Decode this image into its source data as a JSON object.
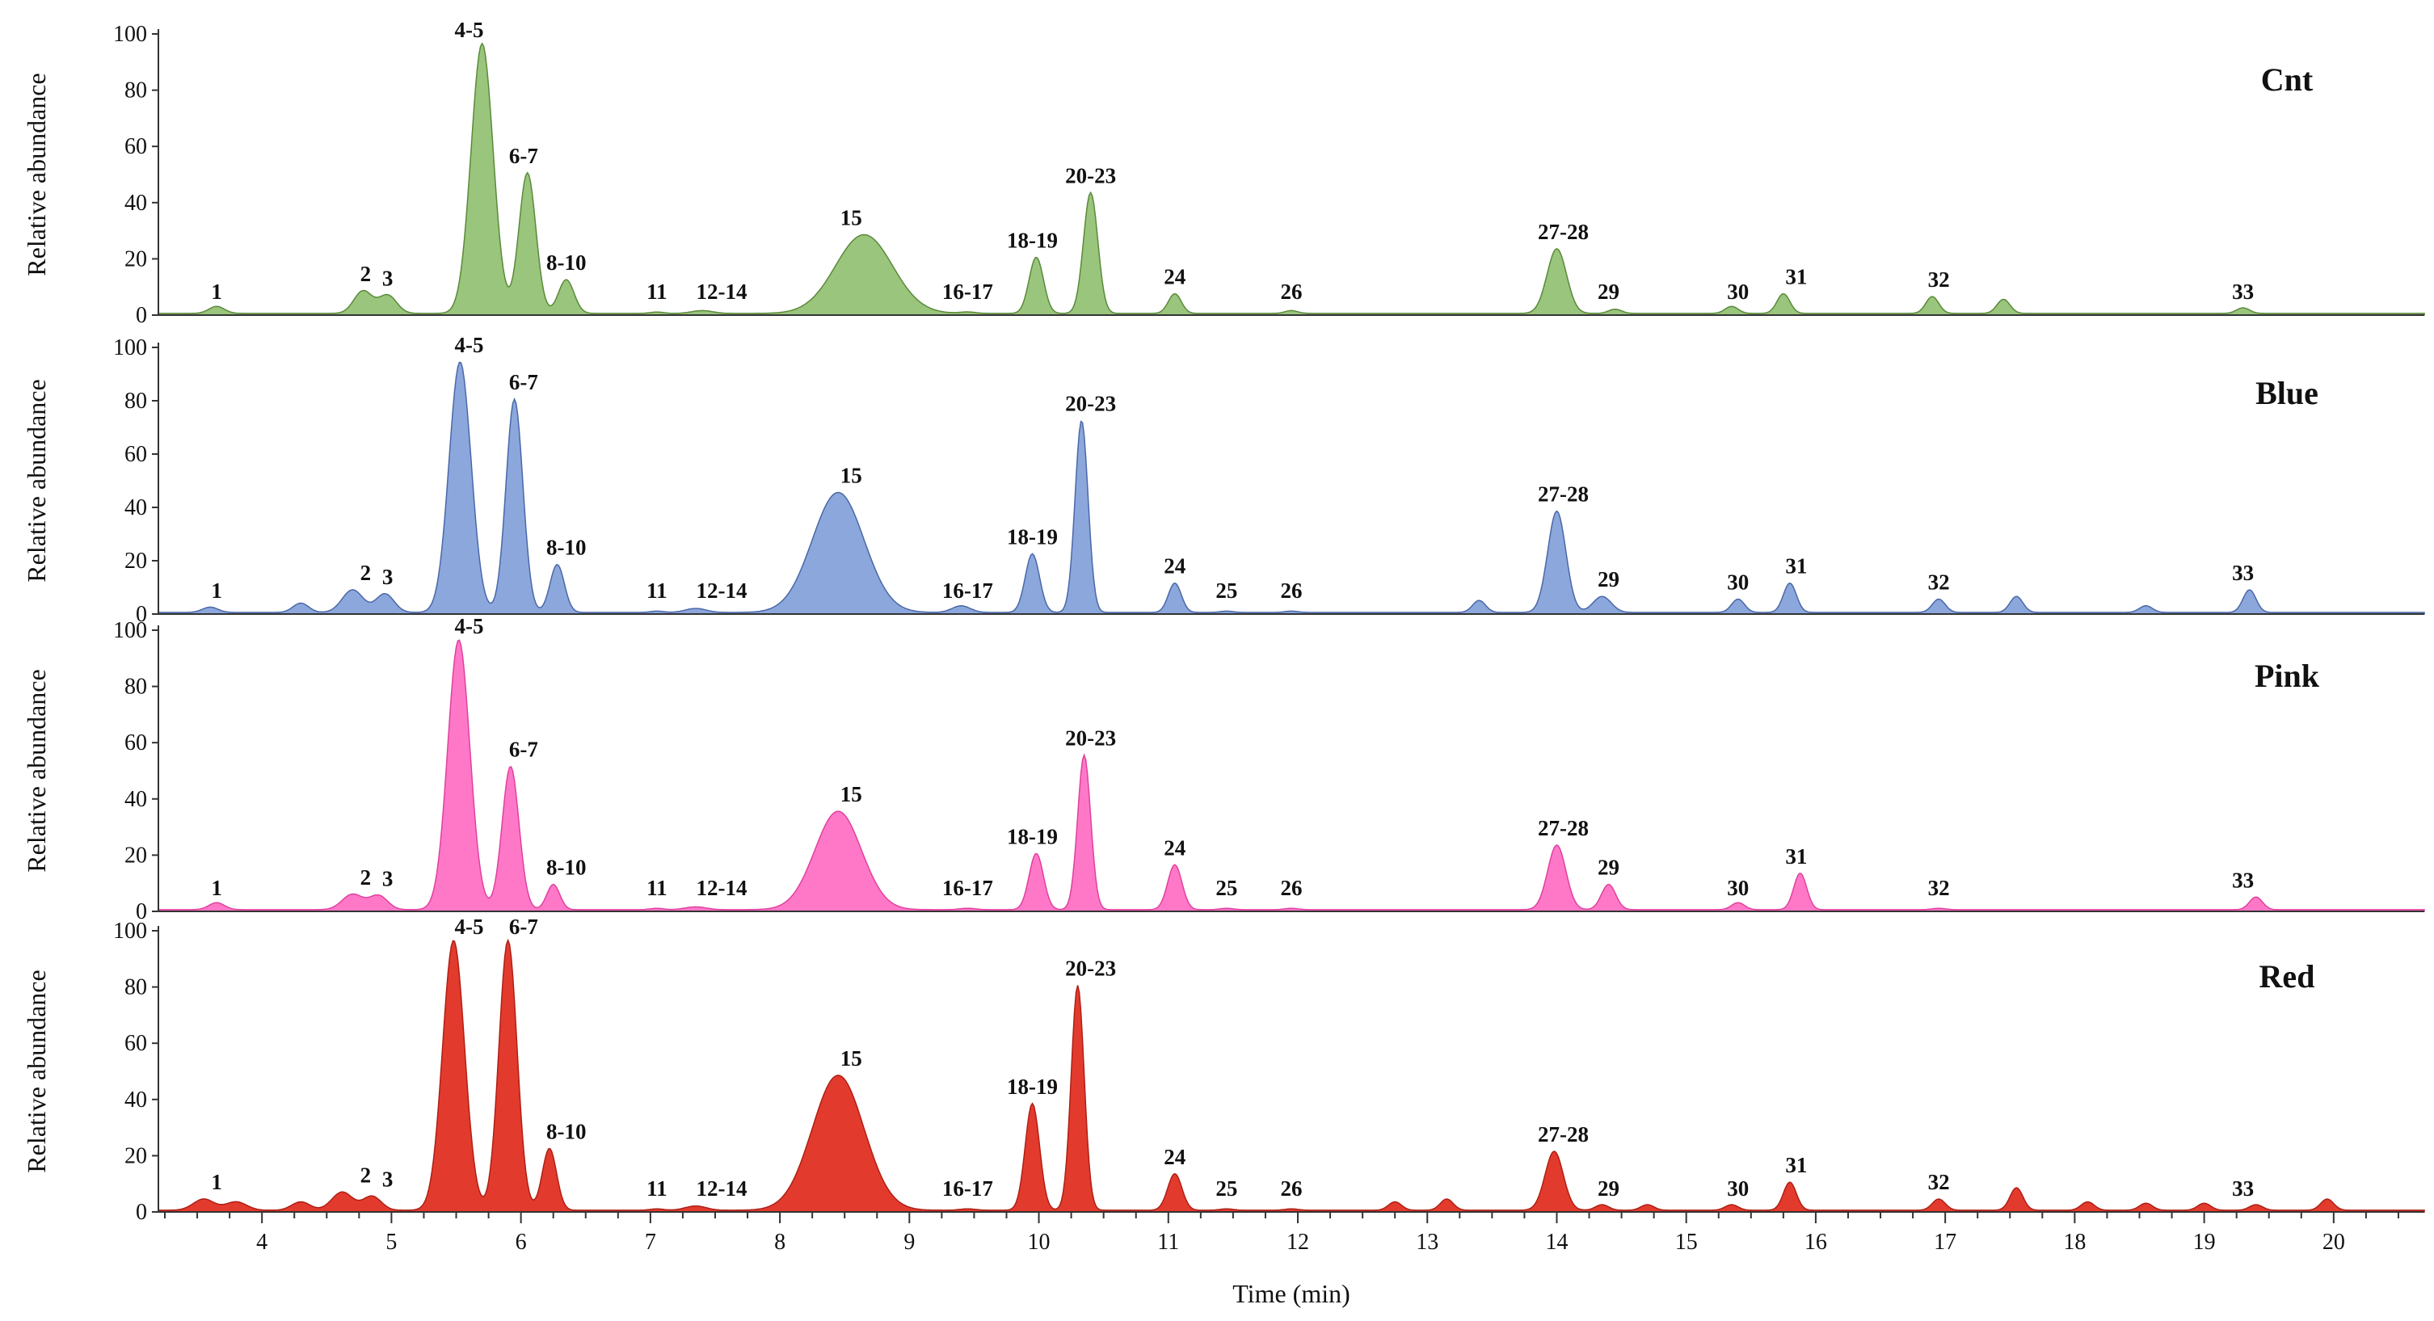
{
  "chart_data": {
    "type": "area",
    "xlabel": "Time (min)",
    "xlim": [
      3.2,
      20.7
    ],
    "x_ticks": [
      "4",
      "5",
      "6",
      "7",
      "8",
      "9",
      "10",
      "11",
      "12",
      "13",
      "14",
      "15",
      "16",
      "17",
      "18",
      "19",
      "20"
    ],
    "y_ticks": [
      "0",
      "20",
      "40",
      "60",
      "80",
      "100"
    ],
    "ylabel": "Relative abundance",
    "ylim": [
      0,
      100
    ],
    "peak_positions": {
      "1": 3.65,
      "2": 4.8,
      "3": 4.97,
      "4-5": 5.6,
      "6-7": 6.02,
      "8-10": 6.35,
      "11": 7.05,
      "12-14": 7.55,
      "15": 8.55,
      "16-17": 9.45,
      "18-19": 9.95,
      "20-23": 10.4,
      "24": 11.05,
      "25": 11.45,
      "26": 11.95,
      "27-28": 14.05,
      "29": 14.4,
      "30": 15.4,
      "31": 15.85,
      "32": 16.95,
      "33": 19.3
    },
    "panels": [
      {
        "title": "Cnt",
        "color": "#9ac57c",
        "stroke": "#5a8a3a",
        "peaks": [
          {
            "label": "1",
            "x": 3.65,
            "y": 2.5,
            "w": 0.06
          },
          {
            "label": "2",
            "x": 4.78,
            "y": 8,
            "w": 0.07
          },
          {
            "label": "3",
            "x": 4.97,
            "y": 6.5,
            "w": 0.07
          },
          {
            "label": "4-5",
            "x": 5.7,
            "y": 96,
            "w": 0.085
          },
          {
            "label": "6-7",
            "x": 6.05,
            "y": 50,
            "w": 0.065
          },
          {
            "label": "8-10",
            "x": 6.35,
            "y": 12,
            "w": 0.06
          },
          {
            "label": "11",
            "x": 7.05,
            "y": 0.5,
            "w": 0.05
          },
          {
            "label": "12-14",
            "x": 7.4,
            "y": 1,
            "w": 0.08
          },
          {
            "label": "15",
            "x": 8.65,
            "y": 28,
            "w": 0.22
          },
          {
            "label": "16-17",
            "x": 9.45,
            "y": 0.5,
            "w": 0.06
          },
          {
            "label": "18-19",
            "x": 9.98,
            "y": 20,
            "w": 0.055
          },
          {
            "label": "20-23",
            "x": 10.4,
            "y": 43,
            "w": 0.055
          },
          {
            "label": "24",
            "x": 11.05,
            "y": 7,
            "w": 0.05
          },
          {
            "label": "26",
            "x": 11.95,
            "y": 1,
            "w": 0.05
          },
          {
            "label": "27-28",
            "x": 14.0,
            "y": 23,
            "w": 0.075
          },
          {
            "label": "29",
            "x": 14.45,
            "y": 1.5,
            "w": 0.05
          },
          {
            "label": "30",
            "x": 15.35,
            "y": 2.5,
            "w": 0.05
          },
          {
            "label": "31",
            "x": 15.75,
            "y": 7,
            "w": 0.05
          },
          {
            "label": "32",
            "x": 16.9,
            "y": 6,
            "w": 0.05
          },
          {
            "label": "",
            "x": 17.45,
            "y": 5,
            "w": 0.05
          },
          {
            "label": "33",
            "x": 19.3,
            "y": 2,
            "w": 0.05
          }
        ]
      },
      {
        "title": "Blue",
        "color": "#8ca7dc",
        "stroke": "#4a68a8",
        "peaks": [
          {
            "label": "1",
            "x": 3.6,
            "y": 2,
            "w": 0.06
          },
          {
            "label": "",
            "x": 4.3,
            "y": 3.5,
            "w": 0.06
          },
          {
            "label": "2",
            "x": 4.7,
            "y": 8.5,
            "w": 0.08
          },
          {
            "label": "3",
            "x": 4.95,
            "y": 7,
            "w": 0.07
          },
          {
            "label": "4-5",
            "x": 5.53,
            "y": 94,
            "w": 0.085
          },
          {
            "label": "6-7",
            "x": 5.95,
            "y": 80,
            "w": 0.065
          },
          {
            "label": "8-10",
            "x": 6.28,
            "y": 18,
            "w": 0.055
          },
          {
            "label": "11",
            "x": 7.05,
            "y": 0.5,
            "w": 0.05
          },
          {
            "label": "12-14",
            "x": 7.35,
            "y": 1.5,
            "w": 0.08
          },
          {
            "label": "15",
            "x": 8.45,
            "y": 45,
            "w": 0.2
          },
          {
            "label": "16-17",
            "x": 9.4,
            "y": 2.5,
            "w": 0.07
          },
          {
            "label": "18-19",
            "x": 9.95,
            "y": 22,
            "w": 0.055
          },
          {
            "label": "20-23",
            "x": 10.33,
            "y": 72,
            "w": 0.05
          },
          {
            "label": "24",
            "x": 11.05,
            "y": 11,
            "w": 0.05
          },
          {
            "label": "25",
            "x": 11.45,
            "y": 0.5,
            "w": 0.05
          },
          {
            "label": "26",
            "x": 11.95,
            "y": 0.5,
            "w": 0.05
          },
          {
            "label": "",
            "x": 13.4,
            "y": 4.5,
            "w": 0.05
          },
          {
            "label": "27-28",
            "x": 14.0,
            "y": 38,
            "w": 0.07
          },
          {
            "label": "29",
            "x": 14.35,
            "y": 6,
            "w": 0.07
          },
          {
            "label": "30",
            "x": 15.4,
            "y": 5,
            "w": 0.05
          },
          {
            "label": "31",
            "x": 15.8,
            "y": 11,
            "w": 0.05
          },
          {
            "label": "32",
            "x": 16.95,
            "y": 5,
            "w": 0.05
          },
          {
            "label": "",
            "x": 17.55,
            "y": 6,
            "w": 0.05
          },
          {
            "label": "",
            "x": 18.55,
            "y": 2.5,
            "w": 0.05
          },
          {
            "label": "33",
            "x": 19.35,
            "y": 8.5,
            "w": 0.05
          }
        ]
      },
      {
        "title": "Pink",
        "color": "#ff78c8",
        "stroke": "#e0409e",
        "peaks": [
          {
            "label": "1",
            "x": 3.65,
            "y": 2.5,
            "w": 0.06
          },
          {
            "label": "2",
            "x": 4.7,
            "y": 5.5,
            "w": 0.08
          },
          {
            "label": "3",
            "x": 4.9,
            "y": 5,
            "w": 0.07
          },
          {
            "label": "4-5",
            "x": 5.52,
            "y": 96,
            "w": 0.085
          },
          {
            "label": "6-7",
            "x": 5.92,
            "y": 51,
            "w": 0.065
          },
          {
            "label": "8-10",
            "x": 6.25,
            "y": 9,
            "w": 0.05
          },
          {
            "label": "11",
            "x": 7.05,
            "y": 0.5,
            "w": 0.05
          },
          {
            "label": "12-14",
            "x": 7.35,
            "y": 1,
            "w": 0.08
          },
          {
            "label": "15",
            "x": 8.45,
            "y": 35,
            "w": 0.18
          },
          {
            "label": "16-17",
            "x": 9.45,
            "y": 0.5,
            "w": 0.06
          },
          {
            "label": "18-19",
            "x": 9.98,
            "y": 20,
            "w": 0.055
          },
          {
            "label": "20-23",
            "x": 10.35,
            "y": 55,
            "w": 0.05
          },
          {
            "label": "24",
            "x": 11.05,
            "y": 16,
            "w": 0.055
          },
          {
            "label": "25",
            "x": 11.45,
            "y": 0.5,
            "w": 0.05
          },
          {
            "label": "26",
            "x": 11.95,
            "y": 0.5,
            "w": 0.05
          },
          {
            "label": "27-28",
            "x": 14.0,
            "y": 23,
            "w": 0.07
          },
          {
            "label": "29",
            "x": 14.4,
            "y": 9,
            "w": 0.055
          },
          {
            "label": "30",
            "x": 15.4,
            "y": 2.5,
            "w": 0.05
          },
          {
            "label": "31",
            "x": 15.88,
            "y": 13,
            "w": 0.05
          },
          {
            "label": "32",
            "x": 16.95,
            "y": 0.5,
            "w": 0.05
          },
          {
            "label": "33",
            "x": 19.4,
            "y": 4.5,
            "w": 0.05
          }
        ]
      },
      {
        "title": "Red",
        "color": "#e23b2e",
        "stroke": "#b01e14",
        "peaks": [
          {
            "label": "1",
            "x": 3.55,
            "y": 4,
            "w": 0.08
          },
          {
            "label": "",
            "x": 3.8,
            "y": 3,
            "w": 0.08
          },
          {
            "label": "",
            "x": 4.3,
            "y": 3,
            "w": 0.07
          },
          {
            "label": "2",
            "x": 4.62,
            "y": 6.5,
            "w": 0.08
          },
          {
            "label": "3",
            "x": 4.85,
            "y": 5,
            "w": 0.07
          },
          {
            "label": "4-5",
            "x": 5.48,
            "y": 96,
            "w": 0.085
          },
          {
            "label": "6-7",
            "x": 5.9,
            "y": 96,
            "w": 0.07
          },
          {
            "label": "8-10",
            "x": 6.22,
            "y": 22,
            "w": 0.055
          },
          {
            "label": "11",
            "x": 7.05,
            "y": 0.5,
            "w": 0.05
          },
          {
            "label": "12-14",
            "x": 7.35,
            "y": 1.5,
            "w": 0.08
          },
          {
            "label": "15",
            "x": 8.45,
            "y": 48,
            "w": 0.2
          },
          {
            "label": "16-17",
            "x": 9.45,
            "y": 0.5,
            "w": 0.06
          },
          {
            "label": "18-19",
            "x": 9.95,
            "y": 38,
            "w": 0.055
          },
          {
            "label": "20-23",
            "x": 10.3,
            "y": 80,
            "w": 0.05
          },
          {
            "label": "24",
            "x": 11.05,
            "y": 13,
            "w": 0.055
          },
          {
            "label": "25",
            "x": 11.45,
            "y": 0.5,
            "w": 0.05
          },
          {
            "label": "26",
            "x": 11.95,
            "y": 0.5,
            "w": 0.05
          },
          {
            "label": "",
            "x": 12.75,
            "y": 3,
            "w": 0.05
          },
          {
            "label": "",
            "x": 13.15,
            "y": 4,
            "w": 0.05
          },
          {
            "label": "27-28",
            "x": 13.98,
            "y": 21,
            "w": 0.07
          },
          {
            "label": "29",
            "x": 14.35,
            "y": 2,
            "w": 0.05
          },
          {
            "label": "",
            "x": 14.7,
            "y": 2,
            "w": 0.05
          },
          {
            "label": "30",
            "x": 15.35,
            "y": 2,
            "w": 0.05
          },
          {
            "label": "31",
            "x": 15.8,
            "y": 10,
            "w": 0.05
          },
          {
            "label": "32",
            "x": 16.95,
            "y": 4,
            "w": 0.05
          },
          {
            "label": "",
            "x": 17.55,
            "y": 8,
            "w": 0.05
          },
          {
            "label": "",
            "x": 18.1,
            "y": 3,
            "w": 0.05
          },
          {
            "label": "",
            "x": 18.55,
            "y": 2.5,
            "w": 0.05
          },
          {
            "label": "",
            "x": 19.0,
            "y": 2.5,
            "w": 0.05
          },
          {
            "label": "33",
            "x": 19.4,
            "y": 2,
            "w": 0.05
          },
          {
            "label": "",
            "x": 19.95,
            "y": 4,
            "w": 0.05
          }
        ]
      }
    ]
  }
}
